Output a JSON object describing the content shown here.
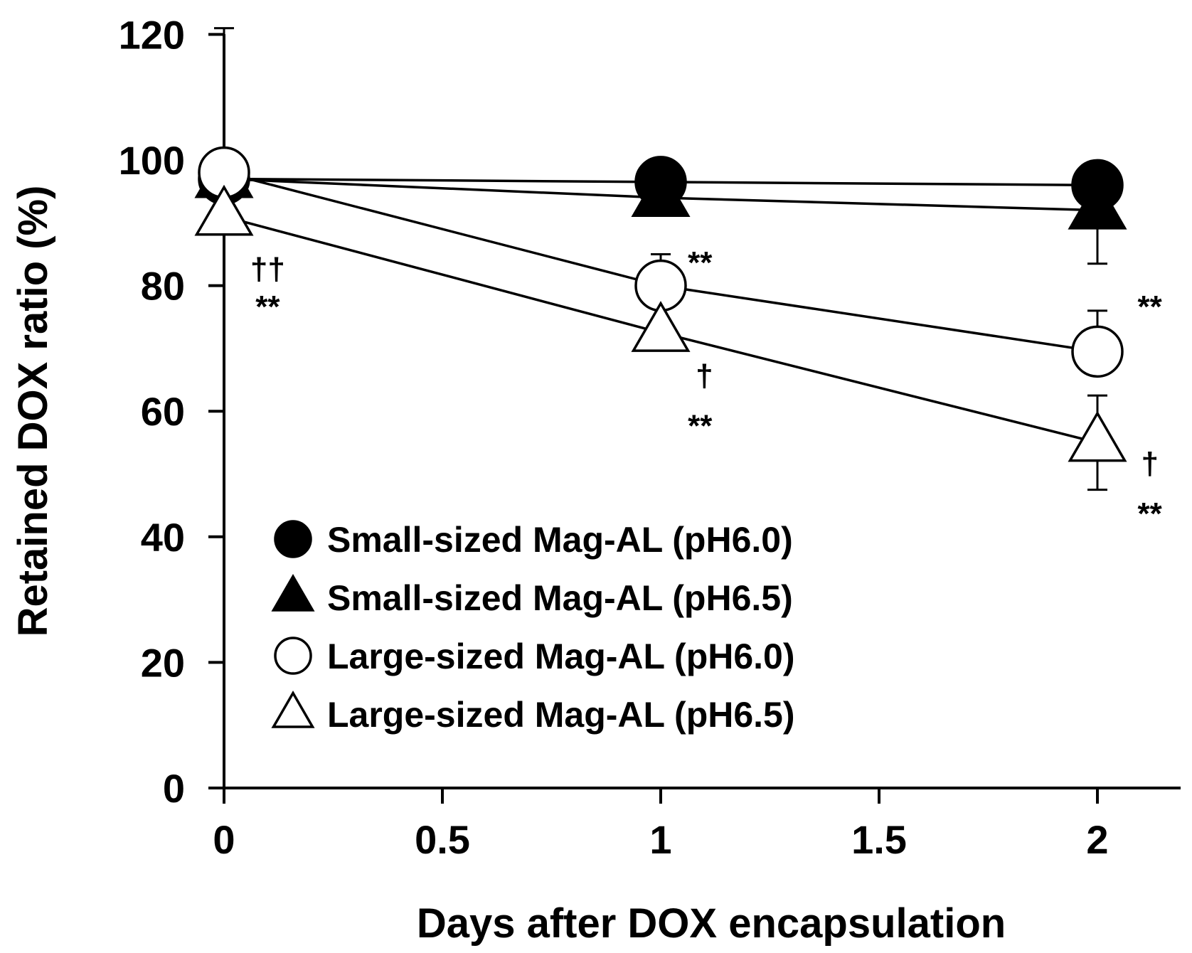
{
  "chart_data": {
    "type": "line",
    "xlabel": "Days after DOX encapsulation",
    "ylabel": "Retained DOX ratio (%)",
    "xlim": [
      0,
      2.2
    ],
    "ylim": [
      0,
      120
    ],
    "xticks": [
      0,
      0.5,
      1,
      1.5,
      2
    ],
    "xtick_labels": [
      "0",
      "0.5",
      "1",
      "1.5",
      "2"
    ],
    "yticks": [
      0,
      20,
      40,
      60,
      80,
      100,
      120
    ],
    "ytick_labels": [
      "0",
      "20",
      "40",
      "60",
      "80",
      "100",
      "120"
    ],
    "grid": false,
    "legend_position": "lower-left",
    "series": [
      {
        "name": "Small-sized Mag-AL (pH6.0)",
        "marker": "circle",
        "filled": true,
        "x": [
          0,
          1,
          2
        ],
        "values": [
          97,
          96.5,
          96
        ],
        "err": [
          0,
          0,
          0
        ]
      },
      {
        "name": "Small-sized Mag-AL (pH6.5)",
        "marker": "triangle",
        "filled": true,
        "x": [
          0,
          1,
          2
        ],
        "values": [
          97,
          94,
          92
        ],
        "err": [
          0,
          0,
          8.5
        ]
      },
      {
        "name": "Large-sized Mag-AL (pH6.0)",
        "marker": "circle",
        "filled": false,
        "x": [
          0,
          1,
          2
        ],
        "values": [
          98,
          80,
          69.5
        ],
        "err": [
          23,
          5,
          6.5
        ]
      },
      {
        "name": "Large-sized Mag-AL (pH6.5)",
        "marker": "triangle",
        "filled": false,
        "x": [
          0,
          1,
          2
        ],
        "values": [
          91,
          72.5,
          55
        ],
        "err": [
          0,
          0,
          7.5
        ]
      }
    ],
    "annotations": [
      {
        "text": "††",
        "x": 0.1,
        "y": 81
      },
      {
        "text": "**",
        "x": 0.1,
        "y": 75
      },
      {
        "text": "**",
        "x": 1.09,
        "y": 82
      },
      {
        "text": "†",
        "x": 1.1,
        "y": 64
      },
      {
        "text": "**",
        "x": 1.09,
        "y": 56
      },
      {
        "text": "**",
        "x": 2.12,
        "y": 75
      },
      {
        "text": "†",
        "x": 2.12,
        "y": 50
      },
      {
        "text": "**",
        "x": 2.12,
        "y": 42
      }
    ]
  }
}
